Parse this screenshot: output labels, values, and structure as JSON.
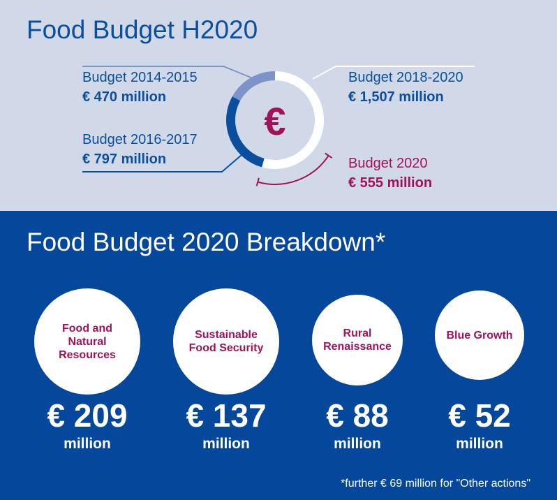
{
  "colors": {
    "top_bg": "#d1d9e8",
    "bottom_bg": "#05479a",
    "dark_blue": "#0a4f9e",
    "light_blue": "#7d94c8",
    "maroon": "#a0135a",
    "white": "#ffffff"
  },
  "icon": {
    "symbol": "€",
    "name": "euro-icon"
  },
  "chart_data": [
    {
      "type": "pie",
      "title": "Food Budget H2020",
      "categories": [
        "Budget 2014-2015",
        "Budget 2016-2017",
        "Budget 2018-2020"
      ],
      "values": [
        470,
        797,
        1507
      ],
      "amount_labels": [
        "€ 470 million",
        "€ 797 million",
        "€ 1,507 million"
      ],
      "annotation": {
        "name": "Budget 2020",
        "value": 555,
        "label": "€ 555 million"
      }
    },
    {
      "type": "bar",
      "title": "Food Budget 2020 Breakdown*",
      "categories": [
        "Food and Natural Resources",
        "Sustainable Food Security",
        "Rural Renaissance",
        "Blue Growth"
      ],
      "values": [
        209,
        137,
        88,
        52
      ],
      "value_labels": [
        "€ 209",
        "€ 137",
        "€ 88",
        "€ 52"
      ],
      "unit": "million",
      "footnote": "*further € 69 million for \"Other actions\""
    }
  ]
}
